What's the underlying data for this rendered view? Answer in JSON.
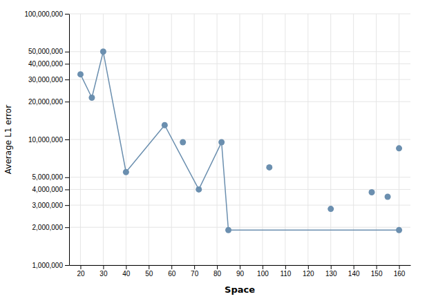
{
  "chart_data": {
    "type": "line",
    "xlabel": "Space",
    "ylabel": "Average L1 error",
    "log": "y",
    "grid": true,
    "xlim": [
      15,
      165
    ],
    "ylim": [
      1000000,
      100000000
    ],
    "xticks": [
      20,
      30,
      40,
      50,
      60,
      70,
      80,
      90,
      100,
      110,
      120,
      130,
      140,
      150,
      160
    ],
    "yticks": [
      {
        "value": 1000000,
        "label": "1,000,000"
      },
      {
        "value": 2000000,
        "label": "2,000,000"
      },
      {
        "value": 3000000,
        "label": "3,000,000"
      },
      {
        "value": 4000000,
        "label": "4,000,000"
      },
      {
        "value": 5000000,
        "label": "5,000,000"
      },
      {
        "value": 10000000,
        "label": "10,000,000"
      },
      {
        "value": 20000000,
        "label": "20,000,000"
      },
      {
        "value": 30000000,
        "label": "30,000,000"
      },
      {
        "value": 40000000,
        "label": "40,000,000"
      },
      {
        "value": 50000000,
        "label": "50,000,000"
      },
      {
        "value": 100000000,
        "label": "100,000,000"
      }
    ],
    "series": [
      {
        "type": "line",
        "marker": "circle",
        "color": "#6b8faf",
        "x": [
          20,
          25,
          30,
          40,
          57,
          72,
          82,
          85,
          160
        ],
        "values": [
          33000000,
          21500000,
          50000000,
          5500000,
          13000000,
          4000000,
          9500000,
          1900000,
          1900000
        ]
      },
      {
        "type": "scatter",
        "marker": "circle",
        "color": "#6b8faf",
        "x": [
          65,
          103,
          130,
          148,
          155,
          160
        ],
        "values": [
          9500000,
          6000000,
          2800000,
          3800000,
          3500000,
          8500000
        ]
      }
    ]
  }
}
